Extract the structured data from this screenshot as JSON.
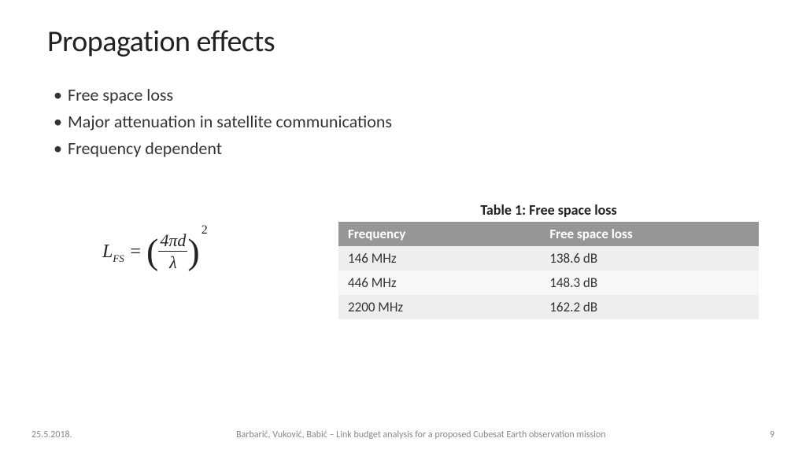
{
  "title": "Propagation effects",
  "bullets": [
    "Free space loss",
    "Major attenuation in satellite communications",
    "Frequency dependent"
  ],
  "formula": {
    "lhs_var": "L",
    "lhs_sub": "FS",
    "eq": " = ",
    "num": "4πd",
    "den": "λ",
    "exp": "2"
  },
  "table": {
    "caption": "Table 1: Free space loss",
    "columns": [
      "Frequency",
      "Free space loss"
    ],
    "rows": [
      [
        "146 MHz",
        "138.6 dB"
      ],
      [
        "446 MHz",
        "148.3 dB"
      ],
      [
        "2200 MHz",
        "162.2 dB"
      ]
    ],
    "header_bg": "#969696",
    "header_fg": "#ffffff",
    "row_odd_bg": "#eeeeee",
    "row_even_bg": "#f7f7f7"
  },
  "footer": {
    "date": "25.5.2018.",
    "center": "Barbarić, Vuković, Babić – Link budget analysis for a proposed Cubesat Earth observation mission",
    "page": "9"
  }
}
